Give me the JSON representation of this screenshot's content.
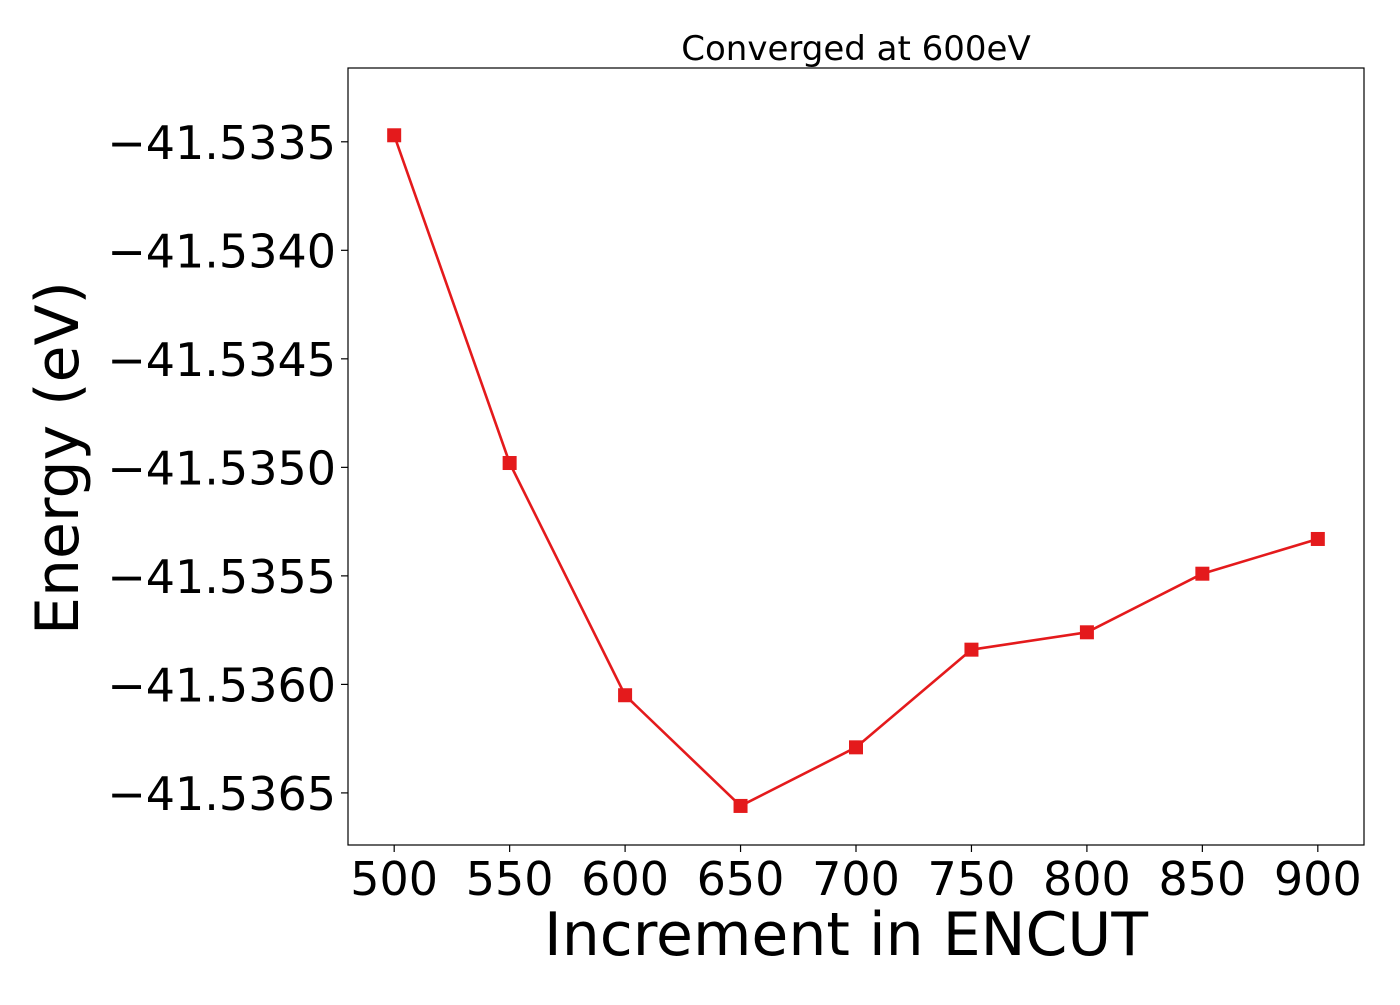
{
  "chart_data": {
    "type": "line",
    "title": "Converged at 600eV",
    "xlabel": "Increment in ENCUT",
    "ylabel": "Energy (eV)",
    "x": [
      500,
      550,
      600,
      650,
      700,
      750,
      800,
      850,
      900
    ],
    "series": [
      {
        "values": [
          -41.53347,
          -41.53498,
          -41.53605,
          -41.53656,
          -41.53629,
          -41.53584,
          -41.53576,
          -41.53549,
          -41.53533
        ],
        "color": "#e41a1c",
        "marker": "square"
      }
    ],
    "xticks": [
      500,
      550,
      600,
      650,
      700,
      750,
      800,
      850,
      900
    ],
    "xtick_labels": [
      "500",
      "550",
      "600",
      "650",
      "700",
      "750",
      "800",
      "850",
      "900"
    ],
    "yticks": [
      -41.5335,
      -41.534,
      -41.5345,
      -41.535,
      -41.5355,
      -41.536,
      -41.5365
    ],
    "ytick_labels": [
      "−41.5335",
      "−41.5340",
      "−41.5345",
      "−41.5350",
      "−41.5355",
      "−41.5360",
      "−41.5365"
    ],
    "xlim": [
      480,
      920
    ],
    "ylim": [
      -41.53674,
      -41.53316
    ],
    "grid": false,
    "legend": false
  }
}
